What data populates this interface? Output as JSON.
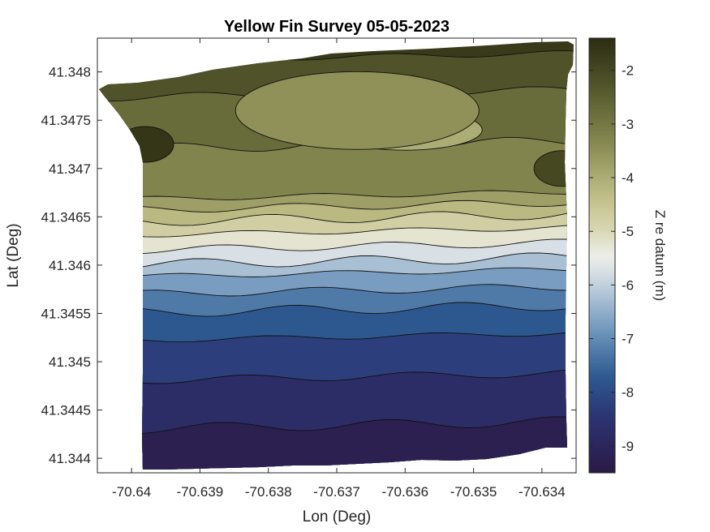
{
  "chart_data": {
    "type": "contour",
    "title": "Yellow Fin Survey 05-05-2023",
    "xlabel": "Lon (Deg)",
    "ylabel": "Lat (Deg)",
    "xlim": [
      -70.6405,
      -70.6335
    ],
    "ylim": [
      41.34385,
      41.34835
    ],
    "xticks": [
      -70.64,
      -70.639,
      -70.638,
      -70.637,
      -70.636,
      -70.635,
      -70.634
    ],
    "xtick_labels": [
      "-70.64",
      "-70.639",
      "-70.638",
      "-70.637",
      "-70.636",
      "-70.635",
      "-70.634"
    ],
    "yticks": [
      41.344,
      41.3445,
      41.345,
      41.3455,
      41.346,
      41.3465,
      41.347,
      41.3475,
      41.348
    ],
    "ytick_labels": [
      "41.344",
      "41.3445",
      "41.345",
      "41.3455",
      "41.346",
      "41.3465",
      "41.347",
      "41.3475",
      "41.348"
    ],
    "grid": false,
    "colorbar": {
      "label": "Z re datum (m)",
      "range": [
        -9.5,
        -1.4
      ],
      "ticks": [
        -2,
        -3,
        -4,
        -5,
        -6,
        -7,
        -8,
        -9
      ],
      "tick_labels": [
        "-2",
        "-3",
        "-4",
        "-5",
        "-6",
        "-7",
        "-8",
        "-9"
      ],
      "colormap": [
        {
          "z": -9.5,
          "color": "#2a1a45"
        },
        {
          "z": -8.5,
          "color": "#2c3272"
        },
        {
          "z": -7.7,
          "color": "#2d5a91"
        },
        {
          "z": -6.9,
          "color": "#6a93ba"
        },
        {
          "z": -6.1,
          "color": "#b8cada"
        },
        {
          "z": -5.5,
          "color": "#eef0ec"
        },
        {
          "z": -4.9,
          "color": "#d6d4ab"
        },
        {
          "z": -4.3,
          "color": "#bdbc85"
        },
        {
          "z": -3.4,
          "color": "#8a8b54"
        },
        {
          "z": -2.5,
          "color": "#5b5f30"
        },
        {
          "z": -1.4,
          "color": "#2c2c12"
        }
      ]
    },
    "depth_profile": [
      {
        "lat": 41.34375,
        "z": -9.5
      },
      {
        "lat": 41.344,
        "z": -9.4
      },
      {
        "lat": 41.3443,
        "z": -9.0
      },
      {
        "lat": 41.3447,
        "z": -8.6
      },
      {
        "lat": 41.3451,
        "z": -8.2
      },
      {
        "lat": 41.3455,
        "z": -7.5
      },
      {
        "lat": 41.34585,
        "z": -6.6
      },
      {
        "lat": 41.34605,
        "z": -5.8
      },
      {
        "lat": 41.34625,
        "z": -5.2
      },
      {
        "lat": 41.3465,
        "z": -4.3
      },
      {
        "lat": 41.3467,
        "z": -3.4
      },
      {
        "lat": 41.3472,
        "z": -3.0
      },
      {
        "lat": 41.3476,
        "z": -2.6
      },
      {
        "lat": 41.348,
        "z": -2.3
      },
      {
        "lat": 41.3483,
        "z": -1.5
      }
    ],
    "features": [
      {
        "kind": "shoal",
        "lon": -70.636,
        "lat": 41.3474,
        "z": -4.0
      },
      {
        "kind": "shoal",
        "lon": -70.6367,
        "lat": 41.3476,
        "z": -3.5
      },
      {
        "kind": "deep",
        "lon": -70.6398,
        "lat": 41.34725,
        "z": -1.6
      },
      {
        "kind": "deep",
        "lon": -70.6337,
        "lat": 41.347,
        "z": -2.0
      }
    ]
  }
}
